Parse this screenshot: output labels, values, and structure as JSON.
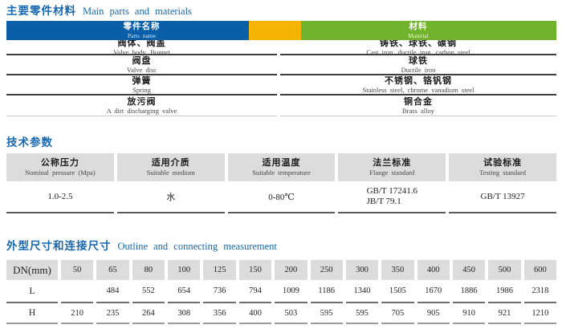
{
  "colors": {
    "title_blue": "#1767b1",
    "band_blue": "#0b5ea8",
    "band_orange": "#f5b301",
    "band_green": "#72b32d",
    "header_gray": "#dcdcdc"
  },
  "sections": {
    "materials": {
      "title_zh": "主要零件材料",
      "title_en": "Main parts and materials",
      "header": {
        "parts_zh": "零件名称",
        "parts_en": "Parts name",
        "material_zh": "材料",
        "material_en": "Material"
      },
      "rows": [
        {
          "part_zh": "阀体、阀盖",
          "part_en": "Valve body, Bonnet",
          "mat_zh": "铸铁、球铁、碳钢",
          "mat_en": "Cast iron, ductile iron, carbon steel"
        },
        {
          "part_zh": "阀盘",
          "part_en": "Valve disc",
          "mat_zh": "球铁",
          "mat_en": "Ductile iron"
        },
        {
          "part_zh": "弹簧",
          "part_en": "Spring",
          "mat_zh": "不锈钢、铬钒钢",
          "mat_en": "Stainless steel, chrome vanadium steel"
        },
        {
          "part_zh": "放污阀",
          "part_en": "A dirt discharging valve",
          "mat_zh": "铜合金",
          "mat_en": "Brass alloy"
        }
      ]
    },
    "tech": {
      "title_zh": "技术参数",
      "columns": [
        {
          "zh": "公称压力",
          "en": "Nominal pressure (Mpa)",
          "value": "1.0-2.5"
        },
        {
          "zh": "适用介质",
          "en": "Suitable medium",
          "value": "水"
        },
        {
          "zh": "适用温度",
          "en": "Suitable temperature",
          "value": "0-80℃"
        },
        {
          "zh": "法兰标准",
          "en": "Flange standard",
          "value": "GB/T 17241.6",
          "value2": "JB/T 79.1"
        },
        {
          "zh": "试验标准",
          "en": "Testing standard",
          "value": "GB/T 13927"
        }
      ]
    },
    "dimensions": {
      "title_zh": "外型尺寸和连接尺寸",
      "title_en": "Outline and connecting measurement",
      "corner": "DN(mm)",
      "dn": [
        "50",
        "65",
        "80",
        "100",
        "125",
        "150",
        "200",
        "250",
        "300",
        "350",
        "400",
        "450",
        "500",
        "600"
      ],
      "rows": [
        {
          "label": "L",
          "values": [
            "",
            "484",
            "552",
            "654",
            "736",
            "794",
            "1009",
            "1186",
            "1340",
            "1505",
            "1670",
            "1886",
            "1986",
            "2318"
          ]
        },
        {
          "label": "H",
          "values": [
            "210",
            "235",
            "264",
            "308",
            "356",
            "400",
            "503",
            "595",
            "595",
            "705",
            "905",
            "910",
            "921",
            "1210"
          ]
        }
      ]
    }
  }
}
